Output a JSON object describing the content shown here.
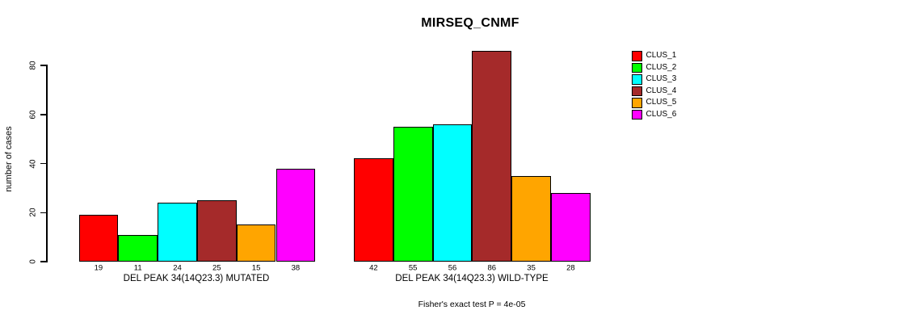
{
  "chart_data": {
    "type": "bar",
    "title": "MIRSEQ_CNMF",
    "ylabel": "number of cases",
    "xlabel": "",
    "ylim": [
      0,
      80
    ],
    "yticks": [
      0,
      20,
      40,
      60,
      80
    ],
    "grid": false,
    "legend_position": "right-outside",
    "categories": [
      "DEL PEAK 34(14Q23.3) MUTATED",
      "DEL PEAK 34(14Q23.3) WILD-TYPE"
    ],
    "series": [
      {
        "name": "CLUS_1",
        "color": "#FF0000",
        "values": [
          19,
          42
        ]
      },
      {
        "name": "CLUS_2",
        "color": "#00FF00",
        "values": [
          11,
          55
        ]
      },
      {
        "name": "CLUS_3",
        "color": "#00FFFF",
        "values": [
          24,
          56
        ]
      },
      {
        "name": "CLUS_4",
        "color": "#A52A2A",
        "values": [
          25,
          86
        ]
      },
      {
        "name": "CLUS_5",
        "color": "#FFA500",
        "values": [
          15,
          35
        ]
      },
      {
        "name": "CLUS_6",
        "color": "#FF00FF",
        "values": [
          38,
          28
        ]
      }
    ],
    "bar_value_labels_shown": true,
    "footnote": "Fisher's exact test P = 4e-05",
    "axis_color": "#000000",
    "background_color": "#FFFFFF"
  }
}
